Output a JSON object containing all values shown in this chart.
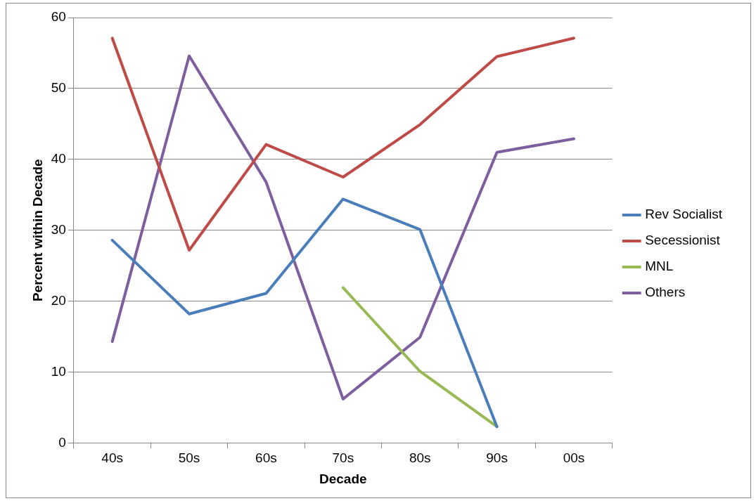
{
  "chart_data": {
    "type": "line",
    "xlabel": "Decade",
    "ylabel": "Percent within Decade",
    "categories": [
      "40s",
      "50s",
      "60s",
      "70s",
      "80s",
      "90s",
      "00s"
    ],
    "series": [
      {
        "name": "Rev Socialist",
        "color": "#4a7ebb",
        "values": [
          28.6,
          18.2,
          21.1,
          34.4,
          30.1,
          2.3,
          null
        ]
      },
      {
        "name": "Secessionist",
        "color": "#be4b48",
        "values": [
          57.1,
          27.2,
          42.1,
          37.5,
          44.9,
          54.5,
          57.1
        ]
      },
      {
        "name": "MNL",
        "color": "#98b954",
        "values": [
          null,
          null,
          null,
          21.9,
          10.1,
          2.3,
          null
        ]
      },
      {
        "name": "Others",
        "color": "#7d5fa0",
        "values": [
          14.3,
          54.6,
          36.8,
          6.2,
          14.9,
          41.0,
          42.9
        ]
      }
    ],
    "ylim": [
      0,
      60
    ],
    "yticks": [
      0,
      10,
      20,
      30,
      40,
      50,
      60
    ],
    "grid": "y",
    "legend": "right",
    "marker": "none",
    "line_style": "solid"
  }
}
